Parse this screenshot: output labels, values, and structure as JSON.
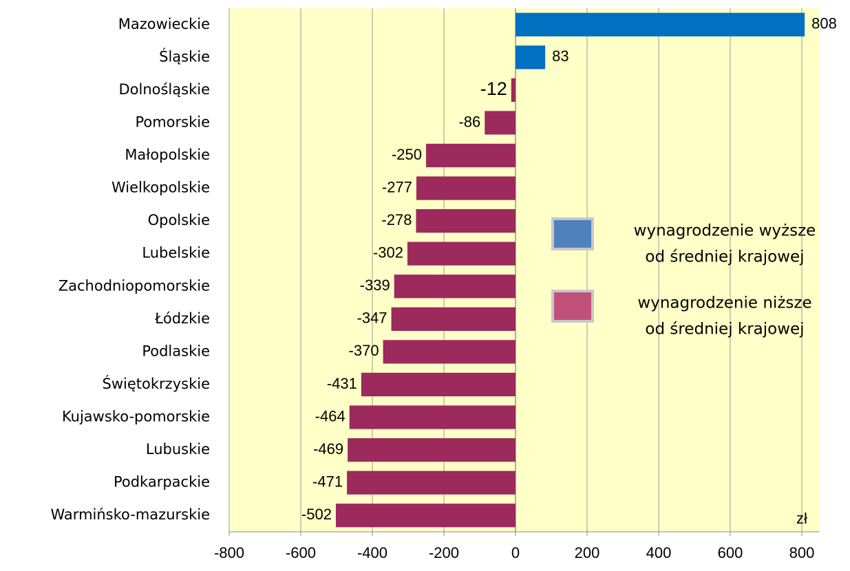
{
  "chart_data": {
    "type": "bar",
    "orientation": "horizontal",
    "categories": [
      "Mazowieckie",
      "Śląskie",
      "Dolnośląskie",
      "Pomorskie",
      "Małopolskie",
      "Wielkopolskie",
      "Opolskie",
      "Lubelskie",
      "Zachodniopomorskie",
      "Łódzkie",
      "Podlaskie",
      "Świętokrzyskie",
      "Kujawsko-pomorskie",
      "Lubuskie",
      "Podkarpackie",
      "Warmińsko-mazurskie"
    ],
    "values": [
      808,
      83,
      -12,
      -86,
      -250,
      -277,
      -278,
      -302,
      -339,
      -347,
      -370,
      -431,
      -464,
      -469,
      -471,
      -502
    ],
    "positive_color": "#0070c0",
    "negative_color": "#9c2a5c",
    "highlight": {
      "index": 2,
      "color": "#ff0000"
    },
    "xlim": [
      -800,
      850
    ],
    "xticks": [
      -800,
      -600,
      -400,
      -200,
      0,
      200,
      400,
      600,
      800
    ],
    "grid": true,
    "background": "#ffffc8",
    "unit": "zł",
    "legend": [
      {
        "lines": [
          "wynagrodzenie wyższe",
          "od średniej krajowej"
        ],
        "color": "#4f81bd"
      },
      {
        "lines": [
          "wynagrodzenie niższe",
          "od średniej krajowej"
        ],
        "color": "#c0507a"
      }
    ]
  }
}
